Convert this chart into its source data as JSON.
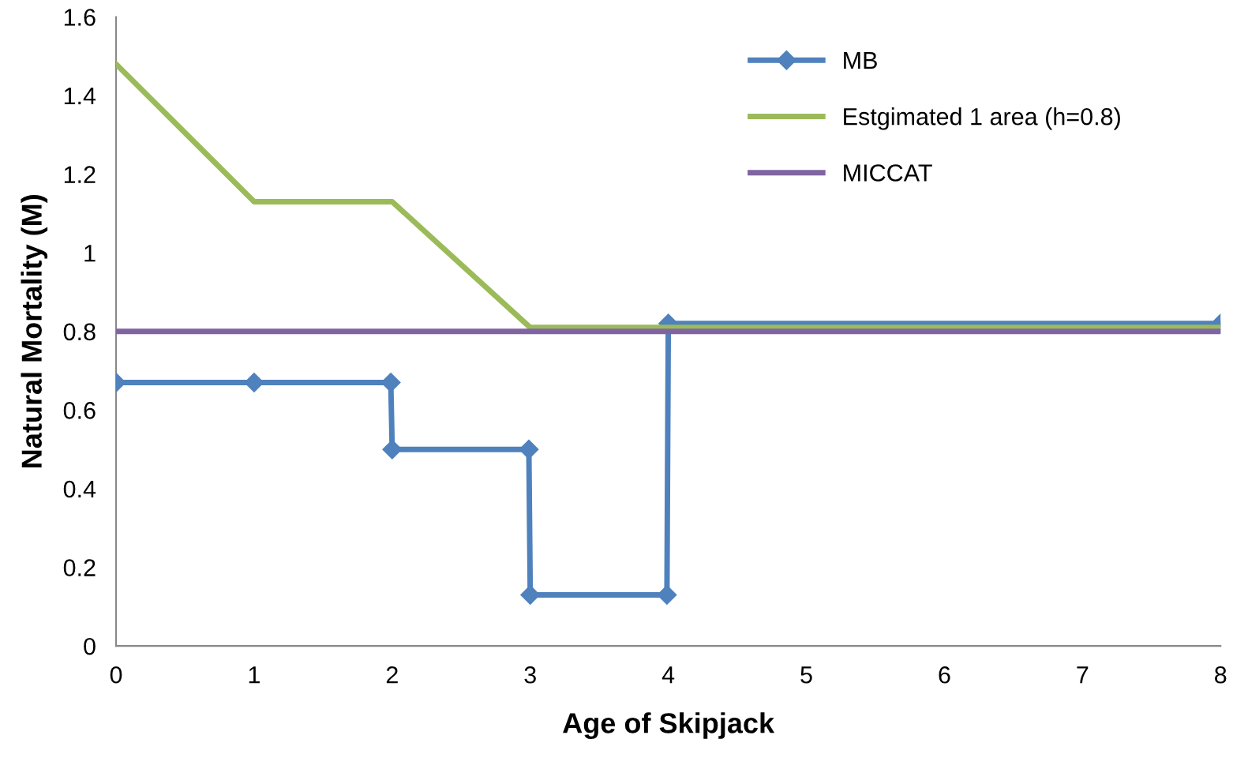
{
  "chart_data": {
    "type": "line",
    "xlabel": "Age of Skipjack",
    "ylabel": "Natural Mortality (M)",
    "xlim": [
      0,
      8
    ],
    "xticks": [
      0,
      1,
      2,
      3,
      4,
      5,
      6,
      7,
      8
    ],
    "ylim": [
      0,
      1.6
    ],
    "yticks": [
      0,
      0.2,
      0.4,
      0.6,
      0.8,
      1,
      1.2,
      1.4,
      1.6
    ],
    "grid": false,
    "legend": "top right",
    "line_style": "solid",
    "series": [
      {
        "name": "MB",
        "color": "#4f81bd",
        "marker": "diamond",
        "x": [
          0,
          1,
          1.99,
          2,
          2.99,
          3,
          3.99,
          4,
          8
        ],
        "values": [
          0.67,
          0.67,
          0.67,
          0.5,
          0.5,
          0.13,
          0.13,
          0.82,
          0.82
        ]
      },
      {
        "name": "Estgimated 1 area (h=0.8)",
        "color": "#9bbb59",
        "marker": "none",
        "x": [
          0,
          1,
          2,
          3,
          4,
          8
        ],
        "values": [
          1.48,
          1.13,
          1.13,
          0.81,
          0.81,
          0.81
        ]
      },
      {
        "name": "MICCAT",
        "color": "#8064a2",
        "marker": "none",
        "x": [
          0,
          8
        ],
        "values": [
          0.8,
          0.8
        ]
      }
    ]
  }
}
